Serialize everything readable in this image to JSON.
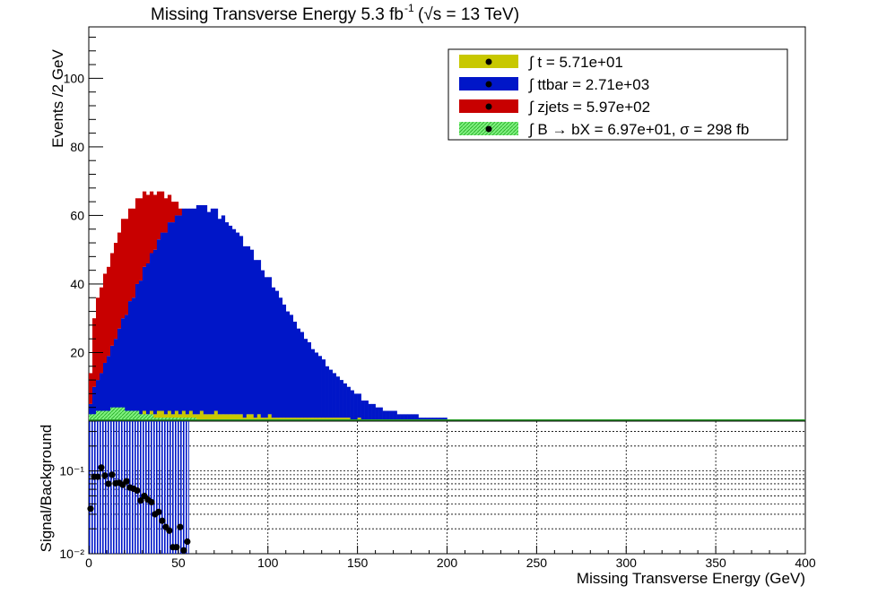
{
  "chart_data": [
    {
      "type": "bar",
      "stacked": true,
      "title": "Missing Transverse Energy 5.3 fb",
      "title_lumi_exp": "-1",
      "title_energy": "(√s = 13 TeV)",
      "ylabel": "Events /2 GeV",
      "xlim": [
        0,
        400
      ],
      "ylim": [
        0,
        115
      ],
      "y_ticks": [
        20,
        40,
        60,
        80,
        100
      ],
      "bin_width": 2,
      "legend_position": "top-right",
      "legend": [
        {
          "label": "∫ t = 5.71e+01",
          "color": "#c8c800"
        },
        {
          "label": "∫ ttbar = 2.71e+03",
          "color": "#0016c8"
        },
        {
          "label": "∫ zjets = 5.97e+02",
          "color": "#c80000"
        },
        {
          "label": "∫ B → bX = 6.97e+01, σ = 298 fb",
          "color": "#33dd33"
        }
      ],
      "series": [
        {
          "name": "t",
          "color": "#c8c800",
          "values": [
            1,
            2,
            2,
            2,
            3,
            2,
            3,
            2,
            3,
            3,
            2,
            3,
            2,
            3,
            2,
            3,
            2,
            3,
            2,
            3,
            3,
            2,
            3,
            2,
            3,
            2,
            3,
            2,
            3,
            2,
            2,
            3,
            2,
            2,
            2,
            3,
            2,
            2,
            2,
            2,
            2,
            2,
            2,
            1,
            2,
            2,
            1,
            2,
            1,
            1,
            2,
            1,
            1,
            1,
            1,
            1,
            1,
            1,
            1,
            1,
            1,
            1,
            1,
            1,
            1,
            1,
            1,
            1,
            1,
            1,
            1,
            1,
            1,
            0,
            0,
            1,
            0,
            0,
            0,
            0,
            0,
            0,
            0,
            0,
            0,
            0,
            0,
            0,
            0,
            0,
            0,
            0,
            0,
            0,
            0,
            0,
            0,
            0,
            0,
            0
          ]
        },
        {
          "name": "ttbar",
          "color": "#0016c8",
          "values": [
            4,
            8,
            10,
            12,
            14,
            17,
            19,
            22,
            24,
            27,
            29,
            32,
            34,
            37,
            39,
            42,
            44,
            46,
            48,
            50,
            52,
            53,
            55,
            56,
            57,
            58,
            59,
            60,
            59,
            60,
            61,
            60,
            61,
            59,
            60,
            59,
            57,
            58,
            56,
            55,
            54,
            53,
            52,
            50,
            49,
            48,
            46,
            45,
            43,
            41,
            40,
            38,
            37,
            35,
            33,
            31,
            30,
            28,
            26,
            25,
            23,
            22,
            20,
            19,
            18,
            17,
            15,
            14,
            13,
            12,
            11,
            10,
            9,
            9,
            8,
            7,
            6,
            6,
            5,
            5,
            4,
            4,
            3,
            3,
            3,
            3,
            2,
            2,
            2,
            2,
            2,
            2,
            1,
            1,
            1,
            1,
            1,
            1,
            1,
            1
          ]
        },
        {
          "name": "zjets",
          "color": "#c80000",
          "values": [
            9,
            20,
            24,
            25,
            26,
            26,
            27,
            28,
            28,
            29,
            28,
            27,
            26,
            25,
            24,
            22,
            20,
            18,
            16,
            14,
            12,
            10,
            8,
            6,
            4,
            2,
            0,
            0,
            0,
            0,
            0,
            0,
            0,
            0,
            0,
            0,
            0,
            0,
            0,
            0,
            0,
            0,
            0,
            0,
            0,
            0,
            0,
            0,
            0,
            0,
            0,
            0,
            0,
            0,
            0,
            0,
            0,
            0,
            0,
            0,
            0,
            0,
            0,
            0,
            0,
            0,
            0,
            0,
            0,
            0,
            0,
            0,
            0,
            0,
            0,
            0,
            0,
            0,
            0,
            0,
            0,
            0,
            0,
            0,
            0,
            0,
            0,
            0,
            0,
            0,
            0,
            0,
            0,
            0,
            0,
            0,
            0,
            0,
            0,
            0
          ]
        },
        {
          "name": "B → bX",
          "color": "#33dd33",
          "values": [
            2,
            2,
            3,
            3,
            3,
            3,
            4,
            4,
            4,
            4,
            3,
            3,
            3,
            3,
            2,
            2,
            2,
            2,
            1,
            1,
            1,
            1,
            1,
            1,
            1,
            1,
            1,
            1,
            1,
            1,
            0,
            0,
            0,
            0,
            0,
            0,
            0,
            0,
            0,
            0,
            0,
            0,
            0,
            0,
            0,
            0,
            0,
            0,
            0,
            0,
            0,
            0,
            0,
            0,
            0,
            0,
            0,
            0,
            0,
            0,
            0,
            0,
            0,
            0,
            0,
            0,
            0,
            0,
            0,
            0,
            0,
            0,
            0,
            0,
            0,
            0,
            0,
            0,
            0,
            0,
            0,
            0,
            0,
            0,
            0,
            0,
            0,
            0,
            0,
            0,
            0,
            0,
            0,
            0,
            0,
            0,
            0,
            0,
            0,
            0
          ]
        }
      ]
    },
    {
      "type": "scatter",
      "xlabel": "Missing Transverse Energy (GeV)",
      "ylabel": "Signal/Background",
      "xlim": [
        0,
        400
      ],
      "y_scale": "log",
      "ylim": [
        0.01,
        0.4
      ],
      "y_tick_labels": [
        "10⁻²",
        "10⁻¹"
      ],
      "x_ticks": [
        0,
        50,
        100,
        150,
        200,
        250,
        300,
        350,
        400
      ],
      "grid": true,
      "hatched_region_x": [
        0,
        56
      ],
      "points": [
        {
          "x": 1,
          "y": 0.035
        },
        {
          "x": 3,
          "y": 0.085
        },
        {
          "x": 5,
          "y": 0.085
        },
        {
          "x": 7,
          "y": 0.11
        },
        {
          "x": 9,
          "y": 0.088
        },
        {
          "x": 11,
          "y": 0.07
        },
        {
          "x": 13,
          "y": 0.09
        },
        {
          "x": 15,
          "y": 0.071
        },
        {
          "x": 17,
          "y": 0.072
        },
        {
          "x": 19,
          "y": 0.068
        },
        {
          "x": 21,
          "y": 0.075
        },
        {
          "x": 23,
          "y": 0.063
        },
        {
          "x": 25,
          "y": 0.061
        },
        {
          "x": 27,
          "y": 0.058
        },
        {
          "x": 29,
          "y": 0.044
        },
        {
          "x": 31,
          "y": 0.05
        },
        {
          "x": 33,
          "y": 0.045
        },
        {
          "x": 35,
          "y": 0.042
        },
        {
          "x": 37,
          "y": 0.03
        },
        {
          "x": 39,
          "y": 0.032
        },
        {
          "x": 41,
          "y": 0.025
        },
        {
          "x": 43,
          "y": 0.021
        },
        {
          "x": 45,
          "y": 0.019
        },
        {
          "x": 47,
          "y": 0.012
        },
        {
          "x": 49,
          "y": 0.012
        },
        {
          "x": 51,
          "y": 0.021
        },
        {
          "x": 53,
          "y": 0.011
        },
        {
          "x": 55,
          "y": 0.014
        }
      ]
    }
  ]
}
